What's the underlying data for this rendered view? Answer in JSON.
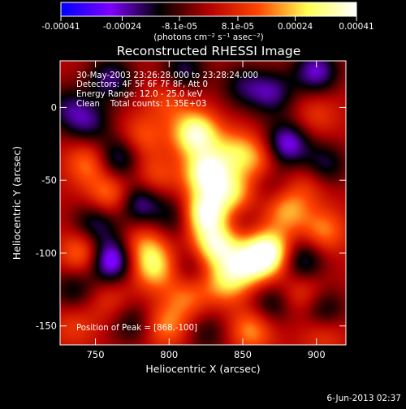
{
  "chart_data": {
    "type": "heatmap",
    "title": "Reconstructed RHESSI Image",
    "xlabel": "Heliocentric X (arcsec)",
    "ylabel": "Heliocentric Y (arcsec)",
    "xlim": [
      726,
      920
    ],
    "ylim": [
      -163,
      32
    ],
    "xticks": [
      750,
      800,
      850,
      900
    ],
    "yticks": [
      0,
      -50,
      -100,
      -150
    ],
    "colorbar": {
      "unit_label": "(photons cm⁻² s⁻¹ asec⁻²)",
      "min": -0.00041,
      "max": 0.00041,
      "tick_values": [
        -0.00041,
        -0.00024,
        -8.1e-05,
        8.1e-05,
        0.00024,
        0.00041
      ],
      "tick_labels": [
        "-0.00041",
        "-0.00024",
        "-8.1e-05",
        "8.1e-05",
        "0.00024",
        "0.00041"
      ],
      "colors": [
        "#0000ff",
        "#7f00ff",
        "#000000",
        "#b40000",
        "#ff4500",
        "#ffff50",
        "#ffffff"
      ]
    },
    "annotations": [
      "30-May-2003 23:26:28.000 to 23:28:24.000",
      "Detectors: 4F 5F 6F 7F 8F, Att 0",
      "Energy Range: 12.0 - 25.0 keV",
      "Clean    Total counts: 1.35E+03"
    ],
    "peak_label": "Position of Peak = [868,-100]",
    "sources": [
      {
        "x": 818,
        "y": -18,
        "value": 0.00037
      },
      {
        "x": 826,
        "y": -45,
        "value": 0.00039
      },
      {
        "x": 824,
        "y": -73,
        "value": 0.0004
      },
      {
        "x": 832,
        "y": -95,
        "value": 0.00034
      },
      {
        "x": 868,
        "y": -100,
        "value": 0.00041
      },
      {
        "x": 853,
        "y": -108,
        "value": 0.00028
      },
      {
        "x": 843,
        "y": -60,
        "value": 0.00026
      },
      {
        "x": 838,
        "y": -120,
        "value": 0.00022
      },
      {
        "x": 844,
        "y": -30,
        "value": 0.00018
      },
      {
        "x": 790,
        "y": -110,
        "value": 0.00025
      },
      {
        "x": 742,
        "y": -100,
        "value": 0.00022
      },
      {
        "x": 760,
        "y": -60,
        "value": 0.0002
      },
      {
        "x": 745,
        "y": -38,
        "value": 0.00018
      },
      {
        "x": 783,
        "y": -95,
        "value": 0.00017
      },
      {
        "x": 790,
        "y": -48,
        "value": 0.00014
      },
      {
        "x": 782,
        "y": -20,
        "value": 0.00014
      },
      {
        "x": 860,
        "y": -35,
        "value": 0.00016
      },
      {
        "x": 880,
        "y": -70,
        "value": 0.00022
      },
      {
        "x": 905,
        "y": -85,
        "value": 0.00018
      },
      {
        "x": 890,
        "y": -128,
        "value": 0.00014
      },
      {
        "x": 896,
        "y": -50,
        "value": 0.00012
      },
      {
        "x": 900,
        "y": -5,
        "value": 0.0001
      },
      {
        "x": 800,
        "y": 5,
        "value": 0.00012
      },
      {
        "x": 798,
        "y": -150,
        "value": 0.00018
      },
      {
        "x": 856,
        "y": -153,
        "value": 0.0002
      },
      {
        "x": 760,
        "y": -132,
        "value": 0.0001
      },
      {
        "x": 812,
        "y": -130,
        "value": 0.00016
      },
      {
        "x": 735,
        "y": -150,
        "value": 0.0001
      },
      {
        "x": 905,
        "y": -155,
        "value": 0.00012
      },
      {
        "x": 900,
        "y": 25,
        "value": -0.00025
      },
      {
        "x": 870,
        "y": 10,
        "value": -0.0002
      },
      {
        "x": 765,
        "y": -35,
        "value": -0.00022
      },
      {
        "x": 745,
        "y": -10,
        "value": -0.00018
      },
      {
        "x": 780,
        "y": -65,
        "value": -0.00024
      },
      {
        "x": 805,
        "y": -75,
        "value": -0.00016
      },
      {
        "x": 750,
        "y": -80,
        "value": -0.0002
      },
      {
        "x": 760,
        "y": -105,
        "value": -0.00035
      },
      {
        "x": 735,
        "y": -125,
        "value": -0.00015
      },
      {
        "x": 890,
        "y": -105,
        "value": -0.00022
      },
      {
        "x": 880,
        "y": -25,
        "value": -0.00028
      },
      {
        "x": 905,
        "y": -40,
        "value": -0.0002
      },
      {
        "x": 905,
        "y": -140,
        "value": -0.00018
      },
      {
        "x": 870,
        "y": -135,
        "value": -0.00016
      },
      {
        "x": 775,
        "y": -148,
        "value": -0.00014
      },
      {
        "x": 826,
        "y": -155,
        "value": -0.00012
      },
      {
        "x": 850,
        "y": 15,
        "value": -0.00015
      },
      {
        "x": 760,
        "y": 20,
        "value": -0.0002
      },
      {
        "x": 730,
        "y": 0,
        "value": -0.00015
      },
      {
        "x": 810,
        "y": 25,
        "value": -0.00018
      },
      {
        "x": 846,
        "y": -75,
        "value": -0.0001
      },
      {
        "x": 815,
        "y": -110,
        "value": -0.00012
      },
      {
        "x": 870,
        "y": -55,
        "value": -0.0001
      }
    ]
  },
  "footer_date": "6-Jun-2013 02:37"
}
